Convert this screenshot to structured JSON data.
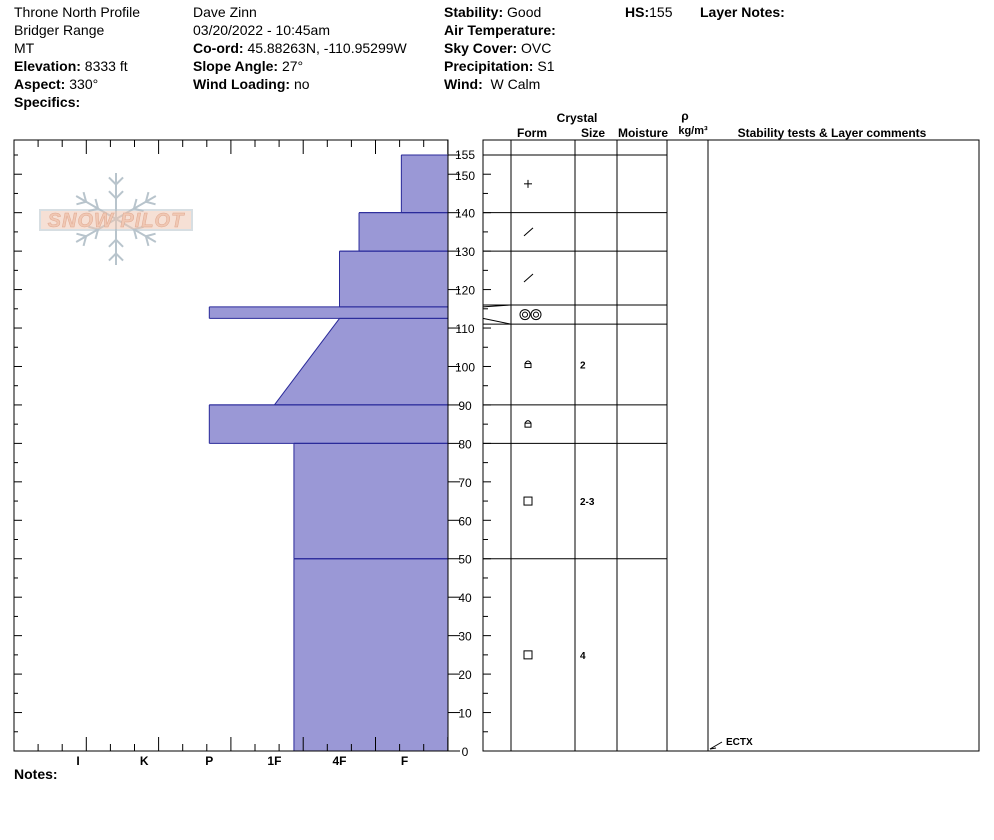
{
  "header": {
    "col1": {
      "location": "Throne North Profile",
      "range": "Bridger Range",
      "state": "MT",
      "elevation_label": "Elevation:",
      "elevation_value": "8333 ft",
      "aspect_label": "Aspect:",
      "aspect_value": "330°",
      "specifics_label": "Specifics:"
    },
    "col2": {
      "observer": "Dave Zinn",
      "datetime": "03/20/2022 - 10:45am",
      "coord_label": "Co-ord:",
      "coord_value": "45.88263N, -110.95299W",
      "slope_label": "Slope Angle:",
      "slope_value": "27°",
      "wind_loading_label": "Wind Loading:",
      "wind_loading_value": "no"
    },
    "col3": {
      "stability_label": "Stability:",
      "stability_value": "Good",
      "air_temp_label": "Air Temperature:",
      "sky_label": "Sky Cover:",
      "sky_value": "OVC",
      "precip_label": "Precipitation:",
      "precip_value": "S1",
      "wind_label": "Wind:",
      "wind_value": "W Calm"
    },
    "hs_label": "HS:",
    "hs_value": "155",
    "layer_notes_label": "Layer Notes:"
  },
  "notes_label": "Notes:",
  "logo_text": "SNOW PILOT",
  "colors": {
    "fill": "#9a98d6",
    "stroke": "#2a2a9a",
    "logo": "#f0c8b4",
    "logo_flake": "#b8c4cc"
  },
  "table_headers": {
    "crystal": "Crystal",
    "form": "Form",
    "size": "Size",
    "moisture": "Moisture",
    "rho": "ρ",
    "density_unit": "kg/m³",
    "comments": "Stability tests & Layer comments"
  },
  "chart_data": {
    "type": "snow_profile",
    "hardness_scale": [
      "I",
      "K",
      "P",
      "1F",
      "4F",
      "F"
    ],
    "depth_range": [
      0,
      155
    ],
    "depth_ticks": [
      0,
      10,
      20,
      30,
      40,
      50,
      60,
      70,
      80,
      90,
      100,
      110,
      120,
      130,
      140,
      150,
      155
    ],
    "hardness_profile_note": "hardness index: 0 = left edge (I-), 1 = I, 2 = K, 3 = P, 4 = 1F, 5 = 4F, 6 = F, 6.67 = right edge",
    "hardness_profile": [
      {
        "top": 155,
        "bottom": 140,
        "hardness_top": 5.95,
        "hardness_bottom": 5.95
      },
      {
        "top": 140,
        "bottom": 130,
        "hardness_top": 5.3,
        "hardness_bottom": 5.3
      },
      {
        "top": 130,
        "bottom": 115.5,
        "hardness_top": 5.0,
        "hardness_bottom": 5.0
      },
      {
        "top": 115.5,
        "bottom": 112.5,
        "hardness_top": 3.0,
        "hardness_bottom": 3.0
      },
      {
        "top": 112.5,
        "bottom": 90,
        "hardness_top": 5.0,
        "hardness_bottom": 4.0
      },
      {
        "top": 90,
        "bottom": 80,
        "hardness_top": 3.0,
        "hardness_bottom": 3.0
      },
      {
        "top": 80,
        "bottom": 50,
        "hardness_top": 4.3,
        "hardness_bottom": 4.3
      },
      {
        "top": 50,
        "bottom": 0,
        "hardness_top": 4.3,
        "hardness_bottom": 4.3
      }
    ],
    "layer_boundaries": [
      155,
      140,
      130,
      116,
      111,
      90,
      80,
      50
    ],
    "layers": [
      {
        "top": 155,
        "bottom": 140,
        "form": "+",
        "size": ""
      },
      {
        "top": 140,
        "bottom": 130,
        "form": "/",
        "size": ""
      },
      {
        "top": 130,
        "bottom": 116,
        "form": "/",
        "size": ""
      },
      {
        "top": 116,
        "bottom": 111,
        "form": "◎◎",
        "size": ""
      },
      {
        "top": 111,
        "bottom": 90,
        "form": "ȸ",
        "size": "2"
      },
      {
        "top": 90,
        "bottom": 80,
        "form": "ȸ",
        "size": ""
      },
      {
        "top": 80,
        "bottom": 50,
        "form": "□",
        "size": "2-3"
      },
      {
        "top": 50,
        "bottom": 0,
        "form": "□",
        "size": "4"
      }
    ],
    "stability_tests": [
      {
        "depth": 0,
        "label": "ECTX"
      }
    ]
  }
}
